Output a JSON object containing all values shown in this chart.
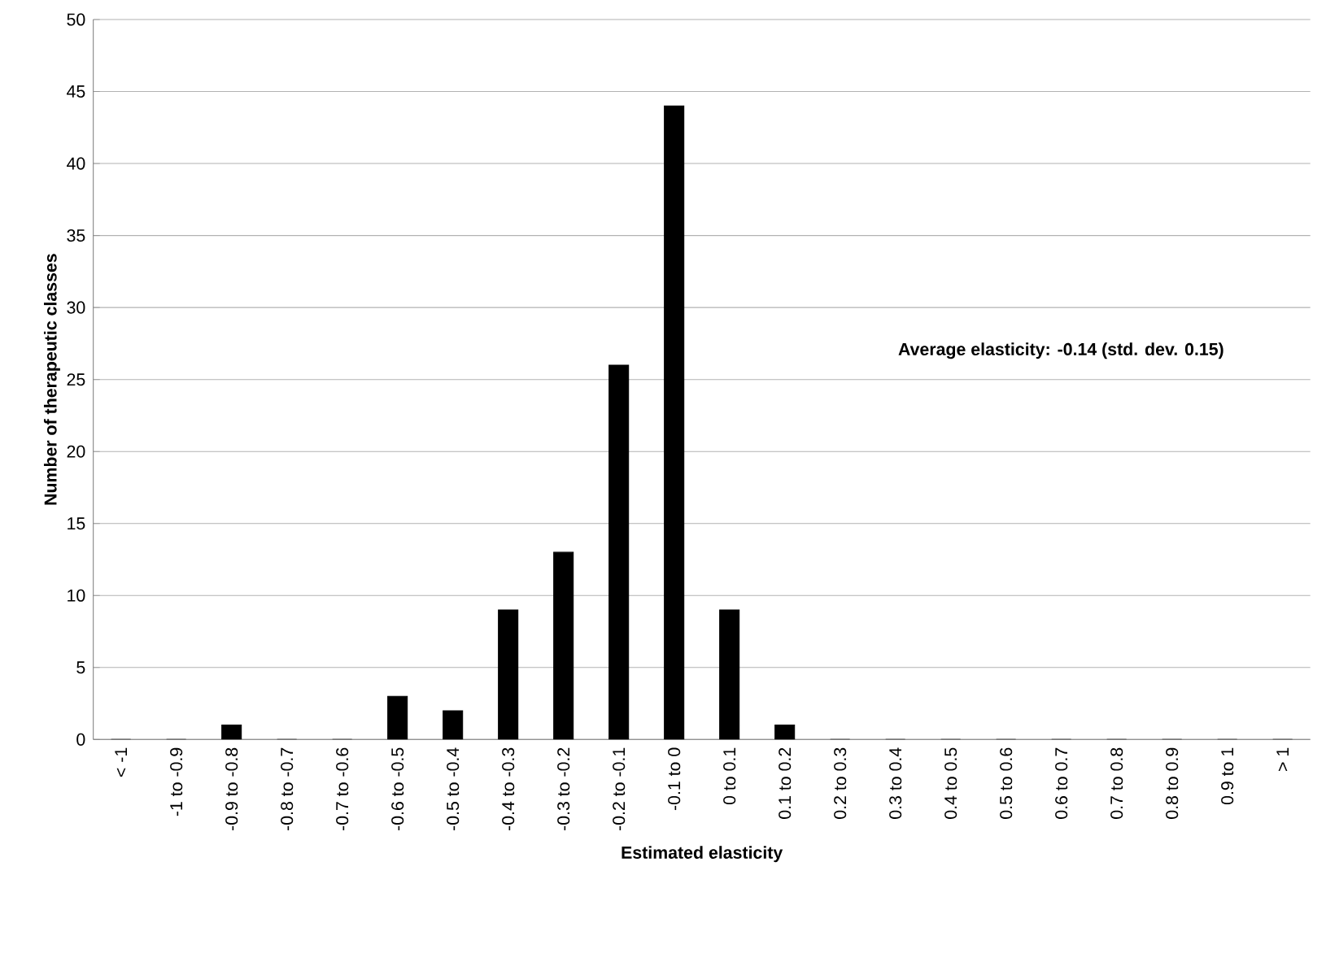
{
  "chart_data": {
    "type": "bar",
    "xlabel": "Estimated elasticity",
    "ylabel": "Number of therapeutic classes",
    "categories": [
      "< -1",
      "-1 to -0.9",
      "-0.9 to -0.8",
      "-0.8 to -0.7",
      "-0.7 to -0.6",
      "-0.6 to -0.5",
      "-0.5 to -0.4",
      "-0.4 to -0.3",
      "-0.3 to -0.2",
      "-0.2 to -0.1",
      "-0.1 to 0",
      "0 to 0.1",
      "0.1 to 0.2",
      "0.2 to 0.3",
      "0.3 to 0.4",
      "0.4 to 0.5",
      "0.5 to 0.6",
      "0.6 to 0.7",
      "0.7 to 0.8",
      "0.8 to 0.9",
      "0.9 to 1",
      "> 1"
    ],
    "values": [
      0,
      0,
      1,
      0,
      0,
      3,
      2,
      9,
      13,
      26,
      44,
      9,
      1,
      0,
      0,
      0,
      0,
      0,
      0,
      0,
      0,
      0
    ],
    "color": "#000000",
    "ylim": [
      0,
      50
    ],
    "yticks": [
      0,
      5,
      10,
      15,
      20,
      25,
      30,
      35,
      40,
      45,
      50
    ],
    "grid": "y",
    "annotations": [
      "Average elasticity:  -0.14 (std. dev. 0.15)"
    ]
  }
}
